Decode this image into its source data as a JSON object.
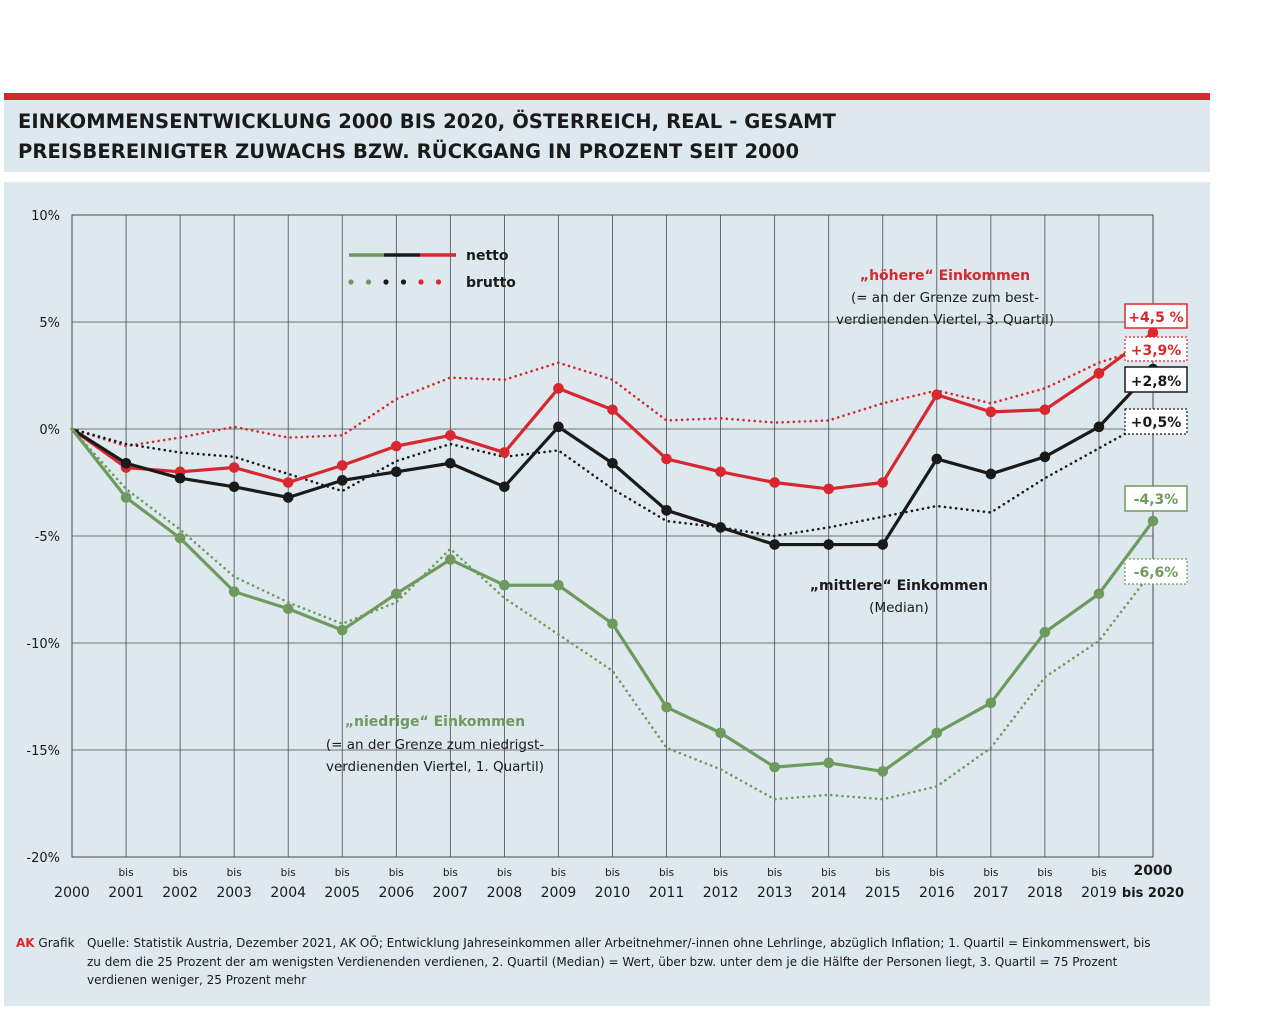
{
  "header": {
    "title_line1": "EINKOMMENSENTWICKLUNG 2000 BIS 2020, ÖSTERREICH, REAL - GESAMT",
    "title_line2": "PREISBEREINIGTER ZUWACHS BZW. RÜCKGANG IN PROZENT SEIT 2000"
  },
  "legend": {
    "netto": "netto",
    "brutto": "brutto"
  },
  "annotations": {
    "high_title": "„höhere“ Einkommen",
    "high_line1": "(= an der Grenze zum best-",
    "high_line2": "verdienenden Viertel, 3. Quartil)",
    "mid_title": "„mittlere“ Einkommen",
    "mid_line1": "(Median)",
    "low_title": "„niedrige“ Einkommen",
    "low_line1": "(= an der Grenze zum niedrigst-",
    "low_line2": "verdienenden Viertel, 1. Quartil)"
  },
  "end_labels": {
    "high_netto": "+4,5 %",
    "high_brutto": "+3,9%",
    "mid_netto": "+2,8%",
    "mid_brutto": "+0,5%",
    "low_netto": "-4,3%",
    "low_brutto": "-6,6%"
  },
  "colors": {
    "red": "#d7282f",
    "black": "#1a1a1a",
    "green": "#6f9a5e",
    "accent_bar": "#d7282f",
    "background": "#dde9ee"
  },
  "chart_data": {
    "type": "line",
    "x": [
      "2000",
      "bis 2001",
      "bis 2002",
      "bis 2003",
      "bis 2004",
      "bis 2005",
      "bis 2006",
      "bis 2007",
      "bis 2008",
      "bis 2009",
      "bis 2010",
      "bis 2011",
      "bis 2012",
      "bis 2013",
      "bis 2014",
      "bis 2015",
      "bis 2016",
      "bis 2017",
      "bis 2018",
      "bis 2019",
      "2000 bis 2020"
    ],
    "x_tick_top": [
      "",
      "bis",
      "bis",
      "bis",
      "bis",
      "bis",
      "bis",
      "bis",
      "bis",
      "bis",
      "bis",
      "bis",
      "bis",
      "bis",
      "bis",
      "bis",
      "bis",
      "bis",
      "bis",
      "bis",
      "2000"
    ],
    "x_tick_bottom": [
      "2000",
      "2001",
      "2002",
      "2003",
      "2004",
      "2005",
      "2006",
      "2007",
      "2008",
      "2009",
      "2010",
      "2011",
      "2012",
      "2013",
      "2014",
      "2015",
      "2016",
      "2017",
      "2018",
      "2019",
      "bis 2020"
    ],
    "y_ticks": [
      "10%",
      "5%",
      "0%",
      "-5%",
      "-10%",
      "-15%",
      "-20%"
    ],
    "ylim": [
      -20,
      10
    ],
    "grid": true,
    "series": [
      {
        "name": "höhere netto",
        "color": "#d7282f",
        "style": "solid",
        "values": [
          0,
          -1.8,
          -2.0,
          -1.8,
          -2.5,
          -1.7,
          -0.8,
          -0.3,
          -1.1,
          1.9,
          0.9,
          -1.4,
          -2.0,
          -2.5,
          -2.8,
          -2.5,
          1.6,
          0.8,
          0.9,
          2.6,
          4.5
        ]
      },
      {
        "name": "höhere brutto",
        "color": "#d7282f",
        "style": "dotted",
        "values": [
          0,
          -0.8,
          -0.4,
          0.1,
          -0.4,
          -0.3,
          1.4,
          2.4,
          2.3,
          3.1,
          2.3,
          0.4,
          0.5,
          0.3,
          0.4,
          1.2,
          1.8,
          1.2,
          1.9,
          3.1,
          3.9
        ]
      },
      {
        "name": "mittlere netto",
        "color": "#1a1a1a",
        "style": "solid",
        "values": [
          0,
          -1.6,
          -2.3,
          -2.7,
          -3.2,
          -2.4,
          -2.0,
          -1.6,
          -2.7,
          0.1,
          -1.6,
          -3.8,
          -4.6,
          -5.4,
          -5.4,
          -5.4,
          -1.4,
          -2.1,
          -1.3,
          0.1,
          2.8
        ]
      },
      {
        "name": "mittlere brutto",
        "color": "#1a1a1a",
        "style": "dotted",
        "values": [
          0,
          -0.7,
          -1.1,
          -1.3,
          -2.1,
          -2.9,
          -1.5,
          -0.7,
          -1.3,
          -1.0,
          -2.8,
          -4.3,
          -4.6,
          -5.0,
          -4.6,
          -4.1,
          -3.6,
          -3.9,
          -2.3,
          -0.9,
          0.5
        ]
      },
      {
        "name": "niedrige netto",
        "color": "#6f9a5e",
        "style": "solid",
        "values": [
          0,
          -3.2,
          -5.1,
          -7.6,
          -8.4,
          -9.4,
          -7.7,
          -6.1,
          -7.3,
          -7.3,
          -9.1,
          -13.0,
          -14.2,
          -15.8,
          -15.6,
          -16.0,
          -14.2,
          -12.8,
          -9.5,
          -7.7,
          -4.3
        ]
      },
      {
        "name": "niedrige brutto",
        "color": "#6f9a5e",
        "style": "dotted",
        "values": [
          0,
          -2.8,
          -4.7,
          -6.9,
          -8.1,
          -9.1,
          -8.1,
          -5.6,
          -7.9,
          -9.6,
          -11.3,
          -14.9,
          -15.9,
          -17.3,
          -17.1,
          -17.3,
          -16.7,
          -14.9,
          -11.6,
          -9.9,
          -6.6
        ]
      }
    ]
  },
  "footer": {
    "brand": "AK",
    "brand_suffix": "Grafik",
    "source": "Quelle: Statistik Austria, Dezember 2021, AK OÖ; Entwicklung Jahreseinkommen aller Arbeitnehmer/-innen ohne Lehrlinge, abzüglich Inflation; 1. Quartil = Einkommenswert, bis zu dem die 25 Prozent der am wenigsten Verdienenden verdienen, 2. Quartil (Median) = Wert, über bzw. unter dem je die Hälfte der Personen liegt, 3. Quartil = 75 Prozent verdienen weniger, 25 Prozent mehr"
  }
}
